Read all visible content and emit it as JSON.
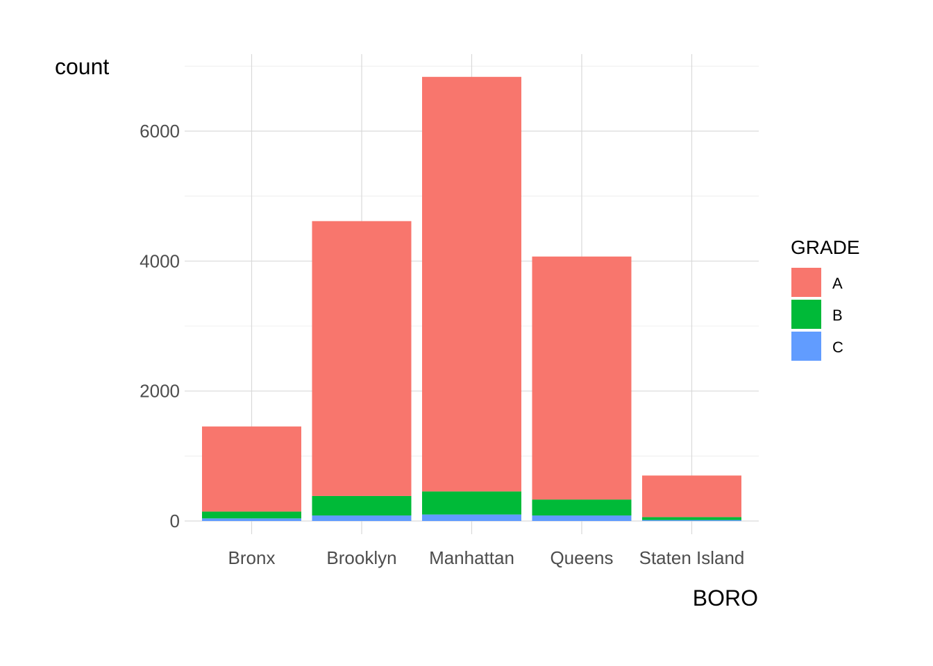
{
  "chart_data": {
    "type": "bar",
    "stacked": true,
    "title": "",
    "xlabel": "BORO",
    "ylabel": "count",
    "categories": [
      "Bronx",
      "Brooklyn",
      "Manhattan",
      "Queens",
      "Staten Island"
    ],
    "series": [
      {
        "name": "A",
        "color": "#F8766D",
        "values": [
          1310,
          4230,
          6380,
          3740,
          640
        ]
      },
      {
        "name": "B",
        "color": "#00BA38",
        "values": [
          105,
          300,
          355,
          245,
          45
        ]
      },
      {
        "name": "C",
        "color": "#619CFF",
        "values": [
          40,
          85,
          100,
          85,
          15
        ]
      }
    ],
    "ylim": [
      0,
      7000
    ],
    "yticks": [
      0,
      2000,
      4000,
      6000
    ],
    "grid": true,
    "legend": {
      "title": "GRADE",
      "position": "right"
    }
  }
}
